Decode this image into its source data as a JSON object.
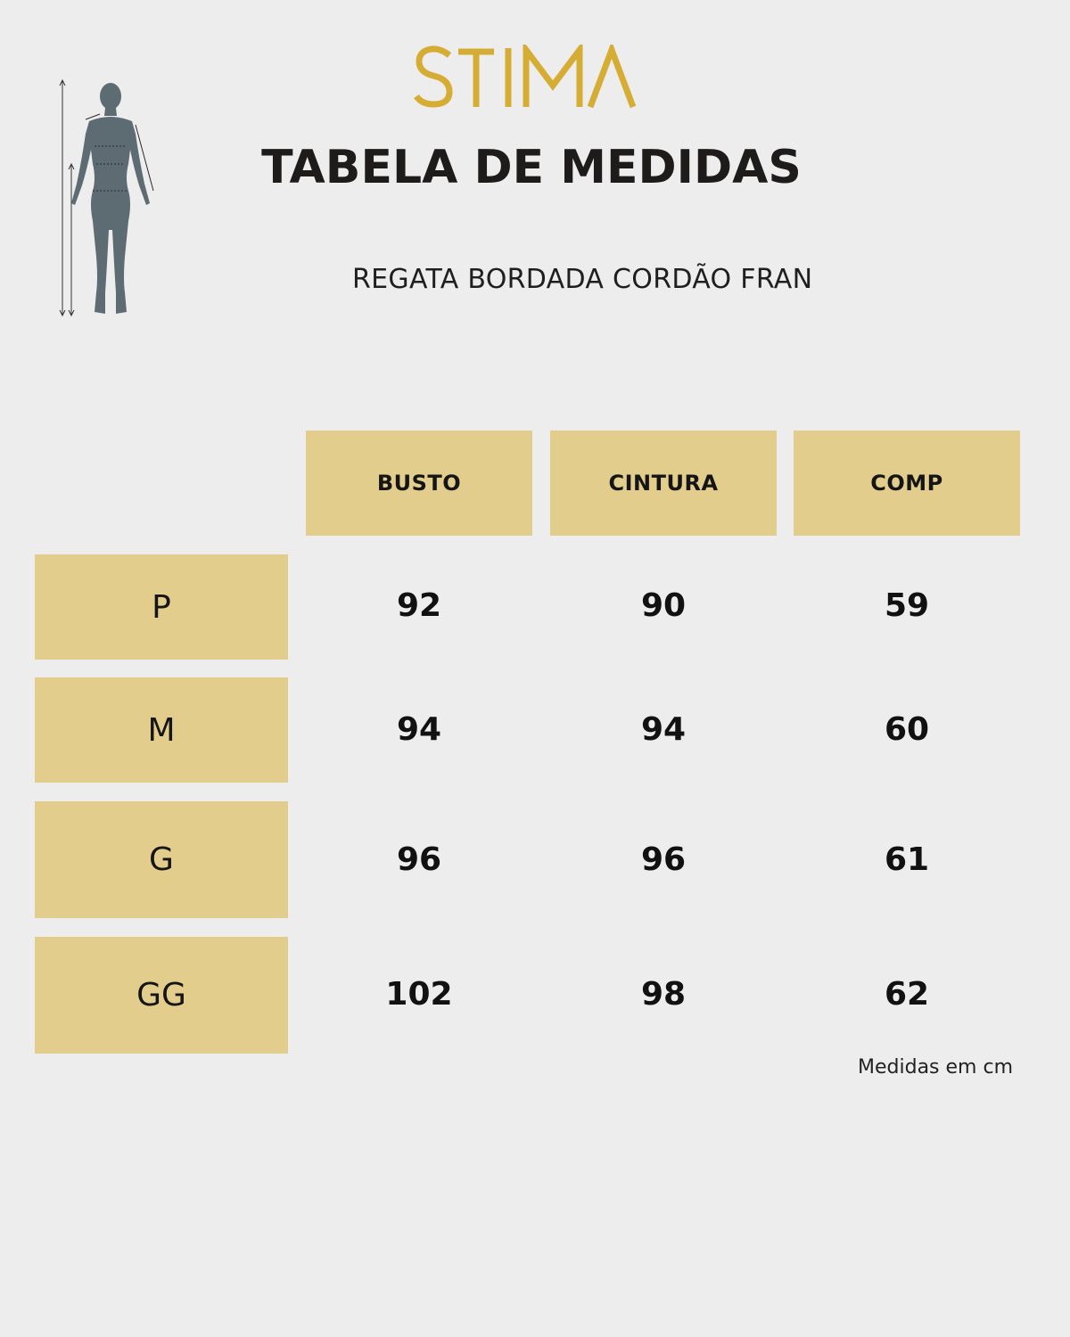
{
  "brand": {
    "logo_text": "STIMA",
    "logo_color": "#d6ad34"
  },
  "title": "TABELA DE MEDIDAS",
  "product_name": "REGATA BORDADA CORDÃO FRAN",
  "table": {
    "columns": [
      "BUSTO",
      "CINTURA",
      "COMP"
    ],
    "rows": [
      {
        "size": "P",
        "values": [
          "92",
          "90",
          "59"
        ]
      },
      {
        "size": "M",
        "values": [
          "94",
          "94",
          "60"
        ]
      },
      {
        "size": "G",
        "values": [
          "96",
          "96",
          "61"
        ]
      },
      {
        "size": "GG",
        "values": [
          "102",
          "98",
          "62"
        ]
      }
    ]
  },
  "footnote": "Medidas em cm",
  "colors": {
    "header_fill": "#e2cd8c",
    "background": "#eeeded",
    "figure": "#5d6b72"
  },
  "icons": {
    "figure": "body-measurement-figure-icon"
  }
}
